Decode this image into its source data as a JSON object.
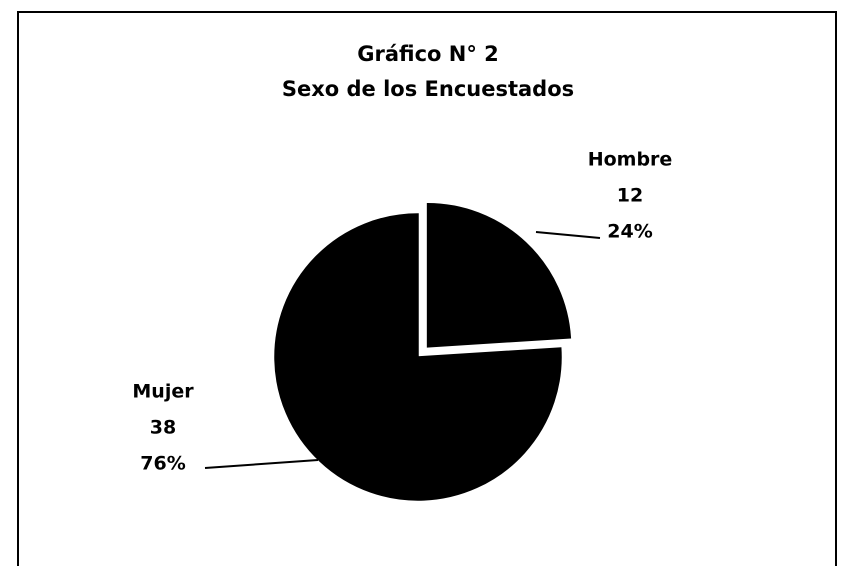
{
  "chart_data": {
    "type": "pie",
    "title": "Gráfico N° 2",
    "subtitle": "Sexo de los Encuestados",
    "categories": [
      "Hombre",
      "Mujer"
    ],
    "values": [
      12,
      38
    ],
    "percent_labels": [
      "24%",
      "76%"
    ],
    "colors": [
      "#000000",
      "#000000"
    ],
    "exploded": [
      true,
      false
    ]
  }
}
